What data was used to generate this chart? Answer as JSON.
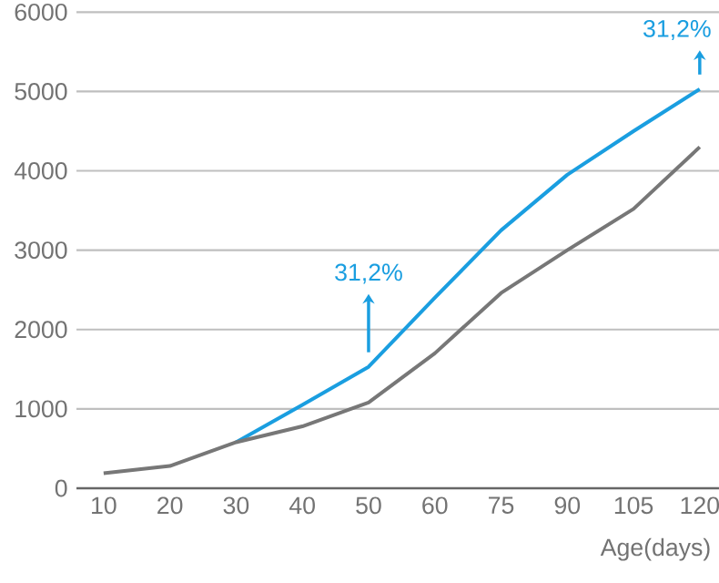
{
  "chart_data": {
    "type": "line",
    "categories": [
      "10",
      "20",
      "30",
      "40",
      "50",
      "60",
      "75",
      "90",
      "105",
      "120"
    ],
    "xlabel": "Age(days)",
    "series": [
      {
        "color": "#1a9ee0",
        "values": [
          null,
          null,
          580,
          1050,
          1530,
          2400,
          3250,
          3950,
          4500,
          5030
        ]
      },
      {
        "color": "#777777",
        "values": [
          190,
          280,
          580,
          780,
          1080,
          1700,
          2460,
          3000,
          3520,
          4300
        ]
      }
    ],
    "annotations": [
      {
        "text": "31,2%",
        "x": "50",
        "y": 1530
      },
      {
        "text": "31,2%",
        "x": "120",
        "y": 5030
      }
    ],
    "ylim": [
      0,
      6000
    ],
    "yticks": [
      0,
      1000,
      2000,
      3000,
      4000,
      5000,
      6000
    ],
    "grid": "y",
    "marker": "none",
    "line_style": "solid"
  }
}
